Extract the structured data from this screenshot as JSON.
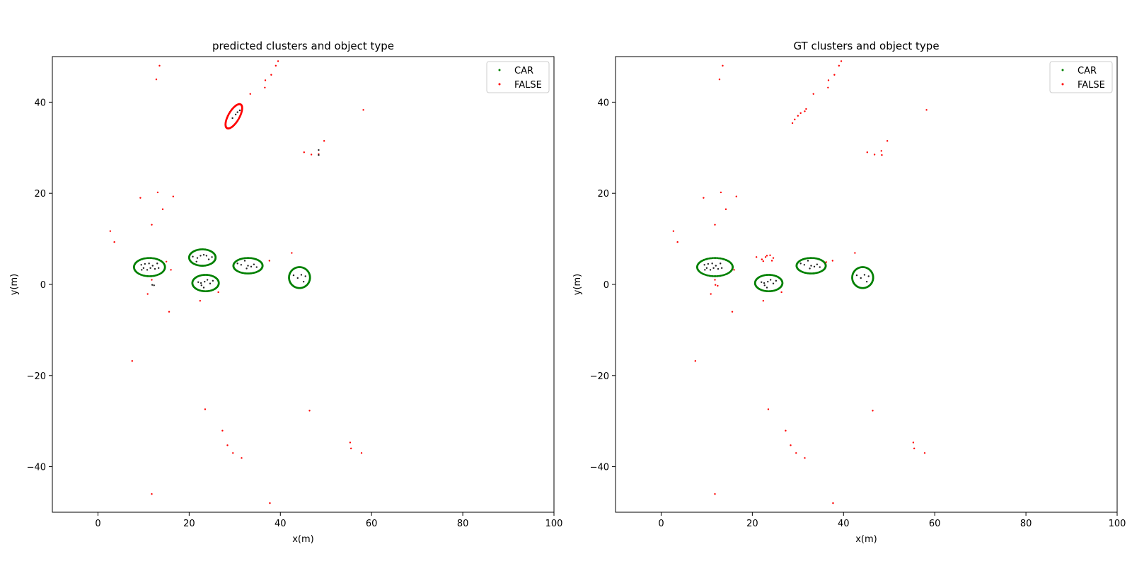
{
  "chart_data": [
    {
      "type": "scatter",
      "title": "predicted clusters and object type",
      "xlabel": "x(m)",
      "ylabel": "y(m)",
      "xlim": [
        -10,
        100
      ],
      "ylim": [
        -50,
        50
      ],
      "xticks": [
        0,
        20,
        40,
        60,
        80,
        100
      ],
      "yticks": [
        -40,
        -20,
        0,
        20,
        40
      ],
      "xtick_labels": [
        "0",
        "20",
        "40",
        "60",
        "80",
        "100"
      ],
      "ytick_labels": [
        "−40",
        "−20",
        "0",
        "20",
        "40"
      ],
      "grid": false,
      "legend_position": "top-right",
      "legend": [
        {
          "label": "CAR",
          "color": "#008000"
        },
        {
          "label": "FALSE",
          "color": "#ff0000"
        }
      ],
      "series": [
        {
          "name": "FALSE",
          "color": "#ff0000",
          "points": [
            [
              13.5,
              48
            ],
            [
              12.8,
              45
            ],
            [
              39.5,
              49
            ],
            [
              39,
              48
            ],
            [
              38,
              46
            ],
            [
              36.7,
              44.8
            ],
            [
              36.6,
              43.2
            ],
            [
              33.4,
              41.8
            ],
            [
              58.2,
              38.3
            ],
            [
              49.6,
              31.5
            ],
            [
              45.2,
              29
            ],
            [
              46.8,
              28.5
            ],
            [
              48.4,
              28.6
            ],
            [
              9.3,
              19
            ],
            [
              13.1,
              20.2
            ],
            [
              16.5,
              19.3
            ],
            [
              14.2,
              16.5
            ],
            [
              11.8,
              13.1
            ],
            [
              2.7,
              11.7
            ],
            [
              3.6,
              9.3
            ],
            [
              15,
              5
            ],
            [
              16,
              3.2
            ],
            [
              37.6,
              5.2
            ],
            [
              42.5,
              6.9
            ],
            [
              11.8,
              1
            ],
            [
              10.9,
              -2.1
            ],
            [
              15.6,
              -6
            ],
            [
              22.4,
              -3.6
            ],
            [
              26.4,
              -1.7
            ],
            [
              7.5,
              -16.8
            ],
            [
              23.5,
              -27.4
            ],
            [
              46.4,
              -27.7
            ],
            [
              27.3,
              -32.1
            ],
            [
              28.4,
              -35.3
            ],
            [
              29.6,
              -37
            ],
            [
              31.5,
              -38.1
            ],
            [
              55.3,
              -34.7
            ],
            [
              55.5,
              -36
            ],
            [
              57.8,
              -37
            ],
            [
              11.8,
              -46
            ],
            [
              37.7,
              -48
            ]
          ]
        },
        {
          "name": "cluster points",
          "color": "#222222",
          "points": [
            [
              9.5,
              4.3
            ],
            [
              10,
              3.6
            ],
            [
              10.3,
              4.5
            ],
            [
              10.8,
              3.2
            ],
            [
              11.2,
              4.6
            ],
            [
              11.5,
              3.6
            ],
            [
              12,
              4.1
            ],
            [
              12.5,
              3.4
            ],
            [
              13,
              4.6
            ],
            [
              13.3,
              3.6
            ],
            [
              9.6,
              3.2
            ],
            [
              11.9,
              -0.1
            ],
            [
              12.3,
              -0.2
            ],
            [
              20.8,
              6.1
            ],
            [
              21.8,
              5.8
            ],
            [
              22.5,
              6.3
            ],
            [
              23.2,
              6.5
            ],
            [
              23.8,
              6.3
            ],
            [
              24.3,
              5.5
            ],
            [
              25,
              6
            ],
            [
              21.6,
              5
            ],
            [
              22,
              0.5
            ],
            [
              22.7,
              -0.2
            ],
            [
              23.4,
              0.6
            ],
            [
              24,
              1
            ],
            [
              24.6,
              0.2
            ],
            [
              25.2,
              0.8
            ],
            [
              23.2,
              -0.7
            ],
            [
              22.6,
              0.3
            ],
            [
              30.6,
              4.6
            ],
            [
              31.4,
              4.3
            ],
            [
              32.2,
              5.2
            ],
            [
              32.9,
              4.1
            ],
            [
              33.6,
              3.9
            ],
            [
              34.2,
              4.4
            ],
            [
              34.8,
              3.8
            ],
            [
              32.6,
              3.5
            ],
            [
              42.9,
              2
            ],
            [
              43.8,
              1.4
            ],
            [
              44.6,
              2.1
            ],
            [
              45.1,
              0.6
            ],
            [
              45.5,
              1.8
            ],
            [
              48.4,
              29.5
            ],
            [
              48.4,
              28.4
            ],
            [
              29.5,
              36.5
            ],
            [
              30.2,
              37.3
            ],
            [
              30.6,
              37.8
            ],
            [
              31.1,
              38.2
            ]
          ]
        }
      ],
      "clusters": [
        {
          "label": "CAR",
          "color": "#008000",
          "center": [
            11.3,
            3.8
          ],
          "radii": [
            3.4,
            2.0
          ],
          "angle_deg": 0
        },
        {
          "label": "CAR",
          "color": "#008000",
          "center": [
            22.9,
            5.9
          ],
          "radii": [
            2.9,
            1.8
          ],
          "angle_deg": 0
        },
        {
          "label": "CAR",
          "color": "#008000",
          "center": [
            23.6,
            0.3
          ],
          "radii": [
            2.9,
            1.8
          ],
          "angle_deg": 0
        },
        {
          "label": "CAR",
          "color": "#008000",
          "center": [
            32.9,
            4.1
          ],
          "radii": [
            3.2,
            1.7
          ],
          "angle_deg": 0
        },
        {
          "label": "CAR",
          "color": "#008000",
          "center": [
            44.2,
            1.5
          ],
          "radii": [
            2.3,
            2.3
          ],
          "angle_deg": 0
        },
        {
          "label": "FALSE",
          "color": "#ff0000",
          "center": [
            29.8,
            36.9
          ],
          "radii": [
            3.0,
            1.2
          ],
          "angle_deg": 60
        }
      ]
    },
    {
      "type": "scatter",
      "title": "GT clusters and object type",
      "xlabel": "x(m)",
      "ylabel": "y(m)",
      "xlim": [
        -10,
        100
      ],
      "ylim": [
        -50,
        50
      ],
      "xticks": [
        0,
        20,
        40,
        60,
        80,
        100
      ],
      "yticks": [
        -40,
        -20,
        0,
        20,
        40
      ],
      "xtick_labels": [
        "0",
        "20",
        "40",
        "60",
        "80",
        "100"
      ],
      "ytick_labels": [
        "−40",
        "−20",
        "0",
        "20",
        "40"
      ],
      "grid": false,
      "legend_position": "top-right",
      "legend": [
        {
          "label": "CAR",
          "color": "#008000"
        },
        {
          "label": "FALSE",
          "color": "#ff0000"
        }
      ],
      "series": [
        {
          "name": "FALSE",
          "color": "#ff0000",
          "points": [
            [
              13.5,
              48
            ],
            [
              12.8,
              45
            ],
            [
              39.5,
              49
            ],
            [
              39,
              48
            ],
            [
              38,
              46
            ],
            [
              36.7,
              44.8
            ],
            [
              36.6,
              43.2
            ],
            [
              33.4,
              41.8
            ],
            [
              31.8,
              38.5
            ],
            [
              31.5,
              38
            ],
            [
              30.6,
              37.6
            ],
            [
              30,
              37
            ],
            [
              29.3,
              36.2
            ],
            [
              28.8,
              35.4
            ],
            [
              58.2,
              38.3
            ],
            [
              49.6,
              31.5
            ],
            [
              45.2,
              29
            ],
            [
              46.8,
              28.5
            ],
            [
              48.3,
              29.3
            ],
            [
              48.4,
              28.4
            ],
            [
              9.3,
              19
            ],
            [
              13.1,
              20.2
            ],
            [
              16.5,
              19.3
            ],
            [
              14.2,
              16.5
            ],
            [
              11.8,
              13.1
            ],
            [
              2.7,
              11.7
            ],
            [
              3.6,
              9.3
            ],
            [
              20.9,
              6
            ],
            [
              22.1,
              5.5
            ],
            [
              22.4,
              5.1
            ],
            [
              23.2,
              6.3
            ],
            [
              23.9,
              6.4
            ],
            [
              24.6,
              5.8
            ],
            [
              24.3,
              5.2
            ],
            [
              22.9,
              6
            ],
            [
              16,
              3.2
            ],
            [
              36.2,
              4.9
            ],
            [
              37.6,
              5.2
            ],
            [
              42.5,
              6.9
            ],
            [
              11.8,
              1
            ],
            [
              11.9,
              -0.1
            ],
            [
              12.4,
              -0.3
            ],
            [
              10.9,
              -2.1
            ],
            [
              15.6,
              -6
            ],
            [
              22.4,
              -3.6
            ],
            [
              26.4,
              -1.7
            ],
            [
              7.5,
              -16.8
            ],
            [
              23.5,
              -27.4
            ],
            [
              46.4,
              -27.7
            ],
            [
              27.3,
              -32.1
            ],
            [
              28.4,
              -35.3
            ],
            [
              29.6,
              -37
            ],
            [
              31.5,
              -38.1
            ],
            [
              55.3,
              -34.7
            ],
            [
              55.5,
              -36
            ],
            [
              57.8,
              -37
            ],
            [
              11.8,
              -46
            ],
            [
              37.7,
              -48
            ]
          ]
        },
        {
          "name": "cluster points",
          "color": "#222222",
          "points": [
            [
              9.5,
              4.3
            ],
            [
              10,
              3.6
            ],
            [
              10.3,
              4.5
            ],
            [
              10.8,
              3.2
            ],
            [
              11.2,
              4.6
            ],
            [
              11.5,
              3.6
            ],
            [
              12,
              4.1
            ],
            [
              12.5,
              3.4
            ],
            [
              13,
              4.6
            ],
            [
              13.3,
              3.6
            ],
            [
              9.6,
              3.2
            ],
            [
              22,
              0.5
            ],
            [
              22.7,
              -0.2
            ],
            [
              23.4,
              0.6
            ],
            [
              24,
              1
            ],
            [
              24.6,
              0.2
            ],
            [
              25.2,
              0.8
            ],
            [
              23.2,
              -0.7
            ],
            [
              22.6,
              0.3
            ],
            [
              30.6,
              4.6
            ],
            [
              31.4,
              4.3
            ],
            [
              32.2,
              5.2
            ],
            [
              32.9,
              4.1
            ],
            [
              33.6,
              3.9
            ],
            [
              34.2,
              4.4
            ],
            [
              34.8,
              3.8
            ],
            [
              32.6,
              3.5
            ],
            [
              42.9,
              2
            ],
            [
              43.8,
              1.4
            ],
            [
              44.6,
              2.1
            ],
            [
              45.1,
              0.6
            ],
            [
              45.5,
              1.8
            ]
          ]
        }
      ],
      "clusters": [
        {
          "label": "CAR",
          "color": "#008000",
          "center": [
            11.8,
            3.8
          ],
          "radii": [
            3.9,
            2.0
          ],
          "angle_deg": 0
        },
        {
          "label": "CAR",
          "color": "#008000",
          "center": [
            23.6,
            0.3
          ],
          "radii": [
            3.0,
            1.8
          ],
          "angle_deg": 0
        },
        {
          "label": "CAR",
          "color": "#008000",
          "center": [
            32.9,
            4.1
          ],
          "radii": [
            3.2,
            1.7
          ],
          "angle_deg": 0
        },
        {
          "label": "CAR",
          "color": "#008000",
          "center": [
            44.2,
            1.5
          ],
          "radii": [
            2.3,
            2.3
          ],
          "angle_deg": 0
        }
      ]
    }
  ]
}
